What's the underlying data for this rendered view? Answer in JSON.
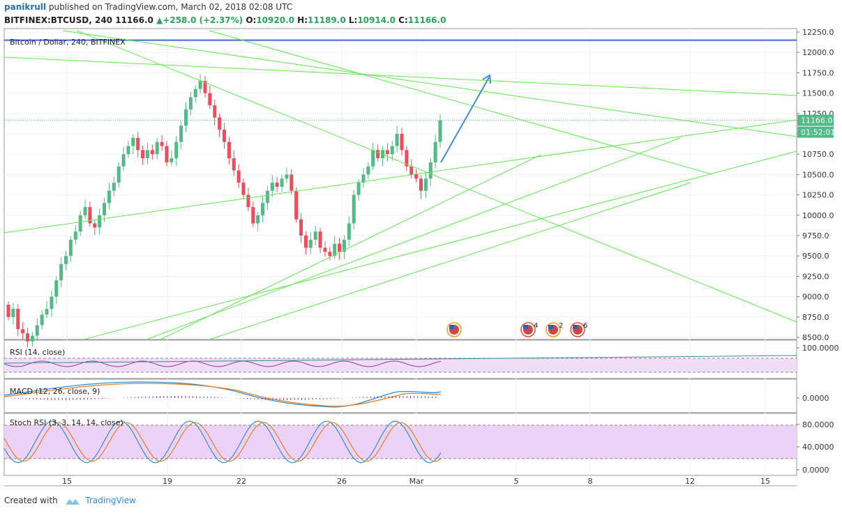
{
  "header": {
    "user": "panikrull",
    "published": "published on TradingView.com, March 02, 2018 02:08 UTC",
    "symbol": "BITFINEX:BTCUSD, 240",
    "last": "11166.0",
    "change": "+258.0 (+2.37%)",
    "o_label": "O:",
    "o": "10920.0",
    "h_label": "H:",
    "h": "11189.0",
    "l_label": "L:",
    "l": "10914.0",
    "c_label": "C:",
    "c": "11166.0"
  },
  "chart_data": [
    {
      "type": "candlestick",
      "title": "Bitcoin / Dollar, 240, BITFINEX",
      "ylim": [
        8500,
        12250
      ],
      "y_ticks": [
        "12250.0",
        "12000.0",
        "11750.0",
        "11500.0",
        "11250.0",
        "11000.0",
        "10750.0",
        "10500.0",
        "10250.0",
        "10000.0",
        "9750.0",
        "9500.0",
        "9250.0",
        "9000.0",
        "8750.0",
        "8500.0"
      ],
      "x_ticks": [
        "15",
        "19",
        "22",
        "26",
        "Mar",
        "5",
        "8",
        "12",
        "15"
      ],
      "last_price_label": "11166.0",
      "countdown_label": "01:52:01",
      "colors": {
        "up": "#53b987",
        "down": "#eb4d5c",
        "trendline": "#5eea4d",
        "hline": "#3e6ec7",
        "arrow": "#3d8fdb"
      },
      "closes": [
        8750,
        8850,
        8600,
        8550,
        8450,
        8520,
        8650,
        8780,
        8850,
        9000,
        9200,
        9400,
        9500,
        9700,
        9800,
        10000,
        10100,
        9900,
        9850,
        10000,
        10150,
        10300,
        10400,
        10600,
        10750,
        10850,
        10950,
        10800,
        10700,
        10800,
        10750,
        10900,
        10850,
        10650,
        10700,
        10900,
        11100,
        11300,
        11450,
        11550,
        11650,
        11500,
        11350,
        11200,
        11050,
        10900,
        10700,
        10550,
        10400,
        10250,
        10100,
        9900,
        10000,
        10150,
        10300,
        10400,
        10350,
        10450,
        10500,
        10300,
        9950,
        9750,
        9600,
        9700,
        9800,
        9600,
        9550,
        9500,
        9650,
        9550,
        9700,
        9900,
        10250,
        10400,
        10500,
        10600,
        10800,
        10700,
        10800,
        10750,
        10850,
        11000,
        10800,
        10600,
        10500,
        10450,
        10300,
        10450,
        10650,
        10900,
        11166
      ]
    },
    {
      "type": "line",
      "title": "RSI (14, close)",
      "y_ticks": [
        "100.0000"
      ]
    },
    {
      "type": "line",
      "title": "MACD (12, 26, close, 9)",
      "y_ticks": [
        "0.0000"
      ]
    },
    {
      "type": "line",
      "title": "Stoch RSI (3, 3, 14, 14, close)",
      "y_ticks": [
        "80.0000",
        "40.0000",
        "0.0000"
      ]
    }
  ],
  "events": [
    {
      "label": ""
    },
    {
      "label": "4"
    },
    {
      "label": "2"
    },
    {
      "label": "6"
    }
  ],
  "footer": {
    "created": "Created with",
    "brand": "TradingView"
  }
}
